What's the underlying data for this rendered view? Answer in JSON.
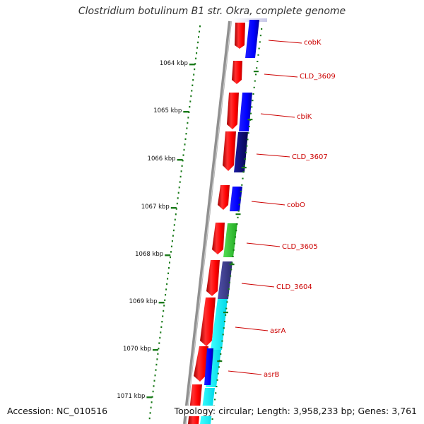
{
  "title": "Clostridium botulinum B1 str. Okra, complete genome",
  "footer": {
    "accession": "Accession: NC_010516",
    "summary": "Topology: circular; Length: 3,958,233 bp; Genes: 3,761"
  },
  "colors": {
    "forward_cds": "#ff1010",
    "gene_blue": "#0a0aff",
    "gene_navy": "#08086e",
    "gene_green": "#33cc33",
    "gene_slate": "#3a3a8c",
    "gene_cyan": "#00ffff",
    "label": "#cc0000",
    "tick": "#1a7a1a",
    "backbone": "#888888"
  },
  "ruler_labels": [
    "1064 kbp",
    "1065 kbp",
    "1066 kbp",
    "1067 kbp",
    "1068 kbp",
    "1069 kbp",
    "1070 kbp",
    "1071 kbp"
  ],
  "gene_labels": [
    "cobK",
    "CLD_3609",
    "cbiK",
    "CLD_3607",
    "cobO",
    "CLD_3605",
    "CLD_3604",
    "asrA",
    "asrB"
  ]
}
